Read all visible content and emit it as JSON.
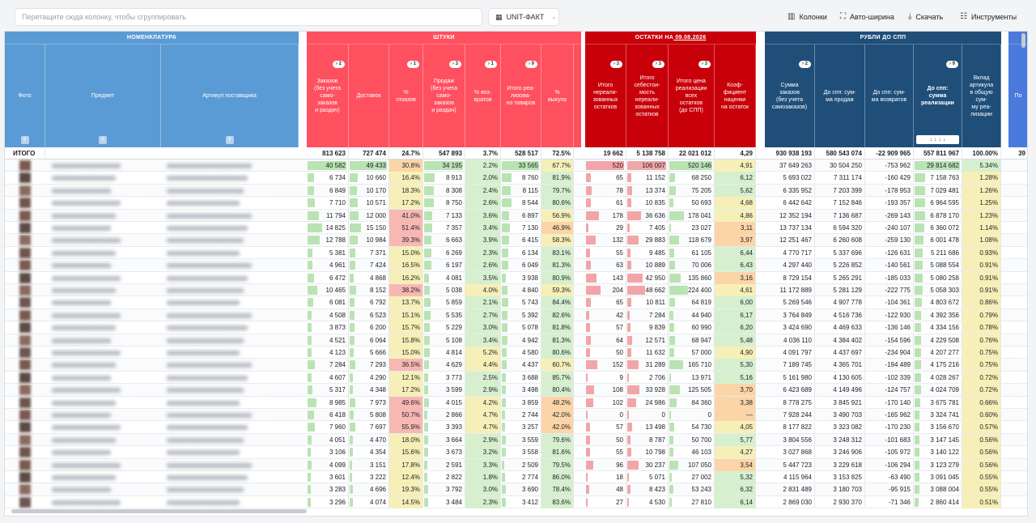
{
  "toolbar": {
    "group_placeholder": "Перетащите сюда колонку, чтобы сгруппировать",
    "unit_label": "UNIT-ФАКТ",
    "columns_label": "Колонки",
    "autowidth_label": "Авто-ширина",
    "download_label": "Скачать",
    "tools_label": "Инструменты"
  },
  "bands": {
    "nomenclature": "НОМЕНКЛАТУРА",
    "pieces": "ШТУКИ",
    "stock": "ОСТАТКИ НА",
    "stock_date": "09.08.2026",
    "rub": "РУБЛИ ДО СПП",
    "next_cut": "По"
  },
  "colors": {
    "blue": "#5b9bd5",
    "red": "#ff5060",
    "darkred": "#c8000a",
    "navy": "#1f4e79",
    "accent": "#4a7bdc"
  },
  "columns": {
    "photo": "Фото",
    "subject": "Предмет",
    "article": "Артикул поставщика",
    "orders": "Заказов\n(без учета\nсамо-\nзаказов\nи раздач)",
    "deliveries": "Доставок",
    "refuse_pct": "%\nотказов",
    "sales": "Продаж\n(без учета\nсамо-\nзаказов\nи раздач)",
    "returns_pct": "% воз-\nвратов",
    "realized": "Итого реа-\nлизова-\nно товаров",
    "buyout_pct": "%\nвыкупа",
    "unsold": "Итого\nнереали-\nзованных\nостатков",
    "cost_unsold": "Итого\nсебестои-\nмость\nнереали-\nзованных\nостатков",
    "price_total": "Итого цена\nреализации\nвсех\nостатков\n(до СПП)",
    "markup": "Коэф-\nфициент\nнаценки\nна остаток",
    "order_sum": "Сумма\nзаказов\n(без учета\nсамозаказов)",
    "sales_sum": "До спп: сум-\nма продаж",
    "returns_sum": "До спп: сум-\nма возвратов",
    "realization_sum": "До спп:\nсумма\nреализации",
    "share": "Вклад\nартикула\nв общую\nсум-\nму реа-\nлизации"
  },
  "pills": {
    "orders": "2",
    "refuse": "1",
    "sales": "3",
    "returns": "1",
    "realized": "9",
    "unsold": "3",
    "cost": "3",
    "price": "3",
    "order_sum": "2",
    "realization": "9"
  },
  "sort_arrows": "↓ ↓ ↓ ↓",
  "total": {
    "label": "ИТОГО",
    "v": [
      "813 623",
      "727 474",
      "24.7%",
      "547 893",
      "3.7%",
      "528 517",
      "72.5%",
      "19 662",
      "5 138 758",
      "22 021 012",
      "4,29",
      "930 938 193",
      "580 543 074",
      "-22 909 965",
      "557 811 967",
      "100.00%",
      "39"
    ]
  },
  "rows": [
    [
      "40 582",
      "49 433",
      "30.8%",
      "34 195",
      "2.2%",
      "33 565",
      "67.7%",
      "520",
      "106 007",
      "520 146",
      "4,91",
      "37 649 263",
      "30 504 250",
      "-753 962",
      "29 814 682",
      "5.34%"
    ],
    [
      "6 734",
      "10 660",
      "16.4%",
      "8 913",
      "2.0%",
      "8 760",
      "81.9%",
      "65",
      "11 152",
      "68 250",
      "6,12",
      "5 693 022",
      "7 311 174",
      "-160 429",
      "7 158 763",
      "1.28%"
    ],
    [
      "6 849",
      "10 170",
      "18.3%",
      "8 308",
      "2.4%",
      "8 115",
      "79.7%",
      "78",
      "13 374",
      "75 205",
      "5,62",
      "6 335 952",
      "7 203 399",
      "-178 953",
      "7 029 481",
      "1.26%"
    ],
    [
      "7 710",
      "10 571",
      "17.2%",
      "8 750",
      "2.6%",
      "8 544",
      "80.6%",
      "61",
      "10 835",
      "50 693",
      "4,68",
      "6 442 642",
      "7 152 846",
      "-193 357",
      "6 964 595",
      "1.25%"
    ],
    [
      "11 794",
      "12 000",
      "41.0%",
      "7 133",
      "3.6%",
      "6 897",
      "56.9%",
      "178",
      "36 636",
      "178 041",
      "4,86",
      "12 352 194",
      "7 136 687",
      "-269 143",
      "6 878 170",
      "1.23%"
    ],
    [
      "14 825",
      "15 150",
      "51.4%",
      "7 357",
      "3.4%",
      "7 130",
      "46.9%",
      "29",
      "7 405",
      "23 027",
      "3,11",
      "13 737 134",
      "6 594 320",
      "-240 107",
      "6 360 072",
      "1.14%"
    ],
    [
      "12 788",
      "10 984",
      "39.3%",
      "6 663",
      "3.9%",
      "6 415",
      "58.3%",
      "132",
      "29 883",
      "118 679",
      "3,97",
      "12 251 467",
      "6 260 608",
      "-259 130",
      "6 001 478",
      "1.08%"
    ],
    [
      "5 381",
      "7 371",
      "15.0%",
      "6 269",
      "2.3%",
      "6 134",
      "83.1%",
      "55",
      "9 485",
      "61 105",
      "6,44",
      "4 770 717",
      "5 337 696",
      "-126 631",
      "5 211 686",
      "0.93%"
    ],
    [
      "4 961",
      "7 424",
      "16.5%",
      "6 197",
      "2.6%",
      "6 049",
      "81.3%",
      "63",
      "10 889",
      "70 006",
      "6,43",
      "4 297 440",
      "5 226 852",
      "-140 561",
      "5 088 554",
      "0.91%"
    ],
    [
      "6 472",
      "4 868",
      "16.2%",
      "4 081",
      "3.5%",
      "3 938",
      "80.9%",
      "143",
      "42 950",
      "135 860",
      "3,16",
      "8 729 154",
      "5 265 291",
      "-185 033",
      "5 080 258",
      "0.91%"
    ],
    [
      "10 465",
      "8 152",
      "38.2%",
      "5 038",
      "4.0%",
      "4 840",
      "59.3%",
      "204",
      "48 662",
      "224 400",
      "4,61",
      "11 172 889",
      "5 281 129",
      "-222 775",
      "5 058 303",
      "0.91%"
    ],
    [
      "6 081",
      "6 792",
      "13.7%",
      "5 859",
      "2.1%",
      "5 743",
      "84.4%",
      "65",
      "10 811",
      "64 819",
      "6,00",
      "5 269 546",
      "4 907 778",
      "-104 361",
      "4 803 672",
      "0.86%"
    ],
    [
      "4 508",
      "6 523",
      "15.1%",
      "5 535",
      "2.7%",
      "5 392",
      "82.6%",
      "42",
      "7 284",
      "44 940",
      "6,17",
      "3 764 849",
      "4 516 736",
      "-122 930",
      "4 392 356",
      "0.79%"
    ],
    [
      "3 873",
      "6 200",
      "15.7%",
      "5 229",
      "3.0%",
      "5 078",
      "81.8%",
      "57",
      "9 839",
      "60 990",
      "6,20",
      "3 424 690",
      "4 469 633",
      "-136 146",
      "4 334 156",
      "0.78%"
    ],
    [
      "4 521",
      "6 064",
      "15.8%",
      "5 108",
      "3.4%",
      "4 942",
      "81.3%",
      "64",
      "12 571",
      "68 947",
      "5,48",
      "4 036 110",
      "4 384 402",
      "-154 596",
      "4 229 508",
      "0.76%"
    ],
    [
      "4 123",
      "5 666",
      "15.0%",
      "4 814",
      "5.2%",
      "4 580",
      "80.6%",
      "50",
      "11 632",
      "57 000",
      "4,90",
      "4 091 797",
      "4 437 697",
      "-234 904",
      "4 207 277",
      "0.75%"
    ],
    [
      "7 284",
      "7 293",
      "36.5%",
      "4 629",
      "4.4%",
      "4 437",
      "60.7%",
      "152",
      "31 289",
      "165 710",
      "5,30",
      "7 189 745",
      "4 365 701",
      "-194 489",
      "4 175 216",
      "0.75%"
    ],
    [
      "4 607",
      "4 290",
      "12.1%",
      "3 773",
      "2.5%",
      "3 688",
      "85.7%",
      "9",
      "2 706",
      "13 971",
      "5,16",
      "5 161 980",
      "4 130 605",
      "-102 339",
      "4 028 267",
      "0.72%"
    ],
    [
      "5 317",
      "4 348",
      "17.2%",
      "3 599",
      "2.9%",
      "3 498",
      "80.4%",
      "108",
      "33 928",
      "125 505",
      "3,70",
      "6 423 689",
      "4 149 496",
      "-124 757",
      "4 024 709",
      "0.72%"
    ],
    [
      "8 985",
      "7 973",
      "49.6%",
      "4 015",
      "4.2%",
      "3 859",
      "48.2%",
      "102",
      "24 986",
      "84 360",
      "3,38",
      "8 778 275",
      "3 845 921",
      "-170 140",
      "3 675 781",
      "0.66%"
    ],
    [
      "6 418",
      "5 808",
      "50.7%",
      "2 866",
      "4.7%",
      "2 744",
      "42.0%",
      "0",
      "0",
      "0",
      "—",
      "7 928 244",
      "3 490 703",
      "-165 962",
      "3 324 741",
      "0.60%"
    ],
    [
      "7 960",
      "7 697",
      "55.9%",
      "3 393",
      "4.7%",
      "3 257",
      "42.0%",
      "57",
      "13 498",
      "54 730",
      "4,05",
      "8 177 822",
      "3 323 082",
      "-170 230",
      "3 156 670",
      "0.57%"
    ],
    [
      "4 051",
      "4 470",
      "18.0%",
      "3 664",
      "2.9%",
      "3 559",
      "79.6%",
      "50",
      "8 787",
      "50 700",
      "5,77",
      "3 804 556",
      "3 248 312",
      "-101 683",
      "3 147 145",
      "0.56%"
    ],
    [
      "3 106",
      "4 354",
      "15.6%",
      "3 673",
      "3.2%",
      "3 558",
      "81.6%",
      "55",
      "10 798",
      "46 103",
      "4,27",
      "3 027 868",
      "3 246 906",
      "-105 972",
      "3 140 122",
      "0.56%"
    ],
    [
      "4 099",
      "3 151",
      "17.8%",
      "2 591",
      "3.3%",
      "2 509",
      "79.5%",
      "96",
      "30 237",
      "107 050",
      "3,54",
      "5 447 723",
      "3 229 618",
      "-106 294",
      "3 123 279",
      "0.56%"
    ],
    [
      "3 601",
      "3 222",
      "12.4%",
      "2 822",
      "1.8%",
      "2 774",
      "86.0%",
      "18",
      "5 071",
      "27 002",
      "5,32",
      "4 115 964",
      "3 153 825",
      "-63 490",
      "3 091 045",
      "0.55%"
    ],
    [
      "3 283",
      "4 696",
      "19.3%",
      "3 792",
      "3.0%",
      "3 690",
      "78.4%",
      "48",
      "8 423",
      "53 243",
      "6,32",
      "2 831 489",
      "3 180 703",
      "-95 915",
      "3 088 004",
      "0.55%"
    ],
    [
      "3 296",
      "4 074",
      "14.5%",
      "3 484",
      "2.3%",
      "3 412",
      "83.6%",
      "27",
      "4 530",
      "27 810",
      "6,14",
      "2 869 030",
      "2 930 370",
      "-71 346",
      "2 860 414",
      "0.51%"
    ]
  ],
  "last_row_subject": "Пиши изолированные",
  "last_row_article": "ГМ_763_R311_1-58"
}
